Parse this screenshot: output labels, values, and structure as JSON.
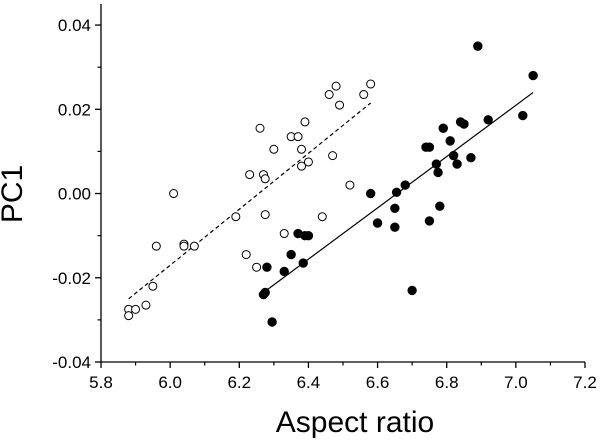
{
  "chart_data": {
    "type": "scatter",
    "title": "",
    "xlabel": "Aspect ratio",
    "ylabel": "PC1",
    "xlim": [
      5.8,
      7.2
    ],
    "ylim": [
      -0.04,
      0.045
    ],
    "x_ticks": [
      "5.8",
      "6.0",
      "6.2",
      "6.4",
      "6.6",
      "6.8",
      "7.0",
      "7.2"
    ],
    "y_ticks": [
      "-0.04",
      "-0.02",
      "0.00",
      "0.02",
      "0.04"
    ],
    "grid": false,
    "legend": "none",
    "series": [
      {
        "marker": "open-circle",
        "points": [
          [
            5.88,
            -0.0275
          ],
          [
            5.88,
            -0.029
          ],
          [
            5.9,
            -0.0275
          ],
          [
            5.93,
            -0.0265
          ],
          [
            5.95,
            -0.022
          ],
          [
            5.96,
            -0.0125
          ],
          [
            6.01,
            0.0
          ],
          [
            6.04,
            -0.012
          ],
          [
            6.04,
            -0.0125
          ],
          [
            6.07,
            -0.0125
          ],
          [
            6.19,
            -0.0055
          ],
          [
            6.22,
            -0.0145
          ],
          [
            6.23,
            0.0045
          ],
          [
            6.25,
            -0.0175
          ],
          [
            6.26,
            0.0155
          ],
          [
            6.27,
            0.0045
          ],
          [
            6.275,
            0.0035
          ],
          [
            6.275,
            -0.005
          ],
          [
            6.3,
            0.0105
          ],
          [
            6.33,
            -0.0095
          ],
          [
            6.35,
            0.0135
          ],
          [
            6.37,
            0.0135
          ],
          [
            6.38,
            0.0065
          ],
          [
            6.38,
            0.0105
          ],
          [
            6.39,
            0.017
          ],
          [
            6.4,
            0.0075
          ],
          [
            6.44,
            -0.0055
          ],
          [
            6.46,
            0.0235
          ],
          [
            6.47,
            0.009
          ],
          [
            6.48,
            0.0255
          ],
          [
            6.49,
            0.021
          ],
          [
            6.52,
            0.002
          ],
          [
            6.56,
            0.0235
          ],
          [
            6.58,
            0.026
          ]
        ],
        "fit": {
          "style": "dashed",
          "x": [
            5.88,
            6.58
          ],
          "y": [
            -0.025,
            0.0215
          ]
        }
      },
      {
        "marker": "filled-circle",
        "points": [
          [
            6.27,
            -0.024
          ],
          [
            6.275,
            -0.0235
          ],
          [
            6.28,
            -0.0175
          ],
          [
            6.295,
            -0.0305
          ],
          [
            6.33,
            -0.0185
          ],
          [
            6.35,
            -0.0145
          ],
          [
            6.37,
            -0.0095
          ],
          [
            6.385,
            -0.0165
          ],
          [
            6.39,
            -0.01
          ],
          [
            6.4,
            -0.01
          ],
          [
            6.58,
            0.0
          ],
          [
            6.6,
            -0.007
          ],
          [
            6.65,
            -0.008
          ],
          [
            6.65,
            -0.0035
          ],
          [
            6.655,
            0.0003
          ],
          [
            6.68,
            0.002
          ],
          [
            6.7,
            -0.023
          ],
          [
            6.74,
            0.011
          ],
          [
            6.75,
            0.011
          ],
          [
            6.75,
            -0.0065
          ],
          [
            6.77,
            0.007
          ],
          [
            6.775,
            0.005
          ],
          [
            6.78,
            -0.003
          ],
          [
            6.79,
            0.0155
          ],
          [
            6.81,
            0.0125
          ],
          [
            6.82,
            0.009
          ],
          [
            6.83,
            0.007
          ],
          [
            6.84,
            0.017
          ],
          [
            6.85,
            0.0165
          ],
          [
            6.87,
            0.0085
          ],
          [
            6.89,
            0.035
          ],
          [
            6.92,
            0.0175
          ],
          [
            7.02,
            0.0185
          ],
          [
            7.05,
            0.028
          ]
        ],
        "fit": {
          "style": "solid",
          "x": [
            6.27,
            7.05
          ],
          "y": [
            -0.0235,
            0.024
          ]
        }
      }
    ]
  }
}
